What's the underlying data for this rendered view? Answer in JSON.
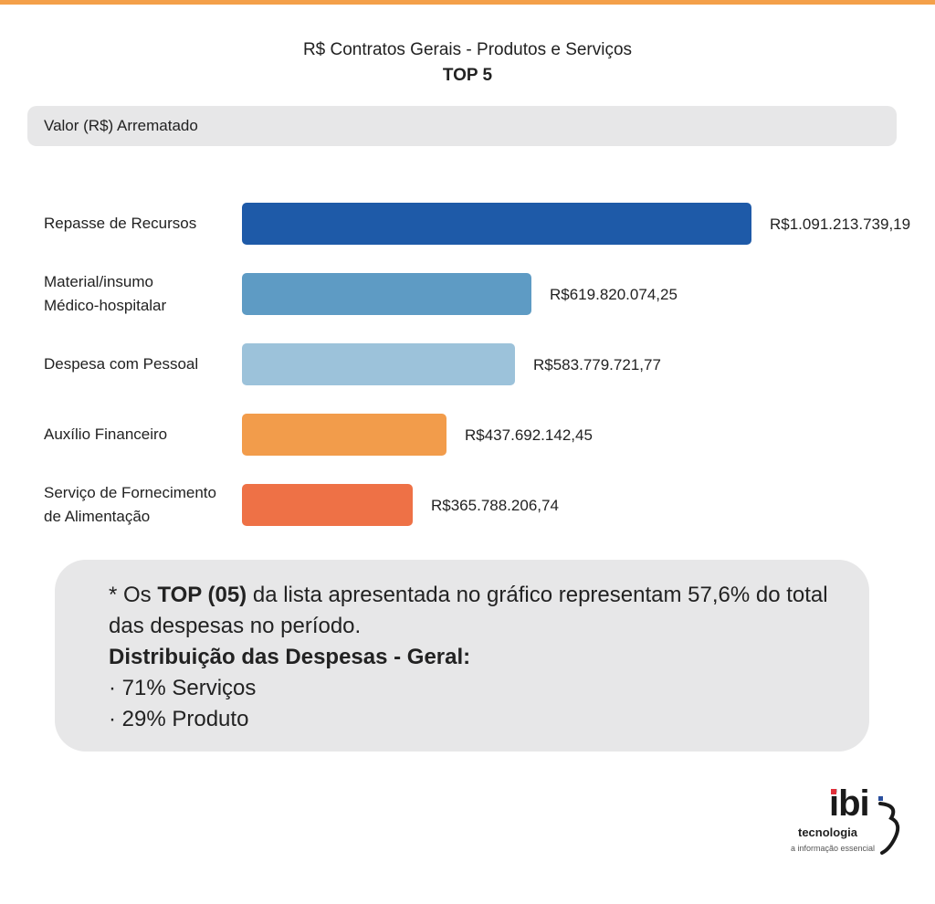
{
  "title": "R$ Contratos Gerais - Produtos e Serviços",
  "subtitle": "TOP 5",
  "value_header": "Valor (R$) Arrematado",
  "colors": {
    "top_rule": "#f4a04a",
    "panel": "#e7e7e8",
    "bars": [
      "#1e5aa8",
      "#5e9bc4",
      "#9cc2da",
      "#f29c4b",
      "#ee7146"
    ],
    "logo_accent_red": "#e0303a",
    "logo_accent_blue": "#2a4f9e"
  },
  "chart_data": {
    "type": "bar",
    "orientation": "horizontal",
    "categories": [
      [
        "Repasse de Recursos"
      ],
      [
        "Material/insumo",
        "Médico-hospitalar"
      ],
      [
        "Despesa com Pessoal"
      ],
      [
        "Auxílio Financeiro"
      ],
      [
        "Serviço de Fornecimento",
        "de Alimentação"
      ]
    ],
    "values": [
      1091213739.19,
      619820074.25,
      583779721.77,
      437692142.45,
      365788206.74
    ],
    "value_labels": [
      "R$1.091.213.739,19",
      "R$619.820.074,25",
      "R$583.779.721,77",
      "R$437.692.142,45",
      "R$365.788.206,74"
    ],
    "xlabel": "Valor (R$) Arrematado",
    "ylabel": "",
    "grid": false,
    "legend": "none"
  },
  "note": {
    "prefix": "* Os ",
    "emphasis": "TOP (05)",
    "suffix": " da lista apresentada no gráfico representam 57,6% do total das despesas no período.",
    "heading": "Distribuição das Despesas - Geral:",
    "items": [
      "· 71% Serviços",
      "· 29% Produto"
    ]
  },
  "logo": {
    "main": "ibi",
    "sub": "tecnologia",
    "tagline": "a informação essencial"
  }
}
